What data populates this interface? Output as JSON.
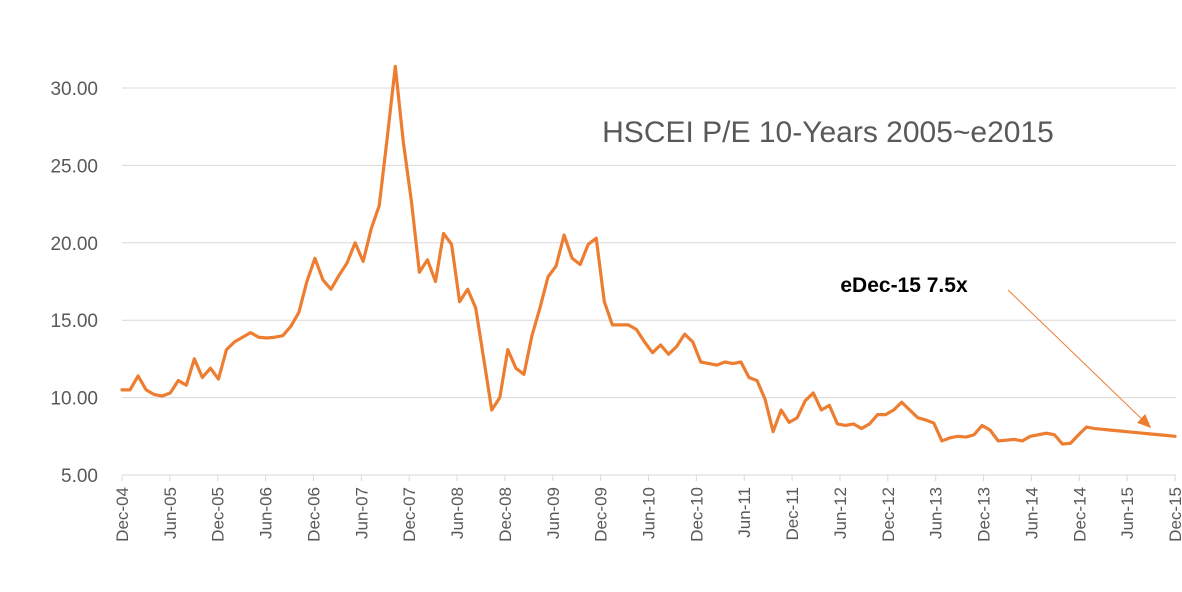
{
  "chart_data": {
    "type": "line",
    "title": "HSCEI P/E 10-Years 2005~e2015",
    "xlabel": "",
    "ylabel": "",
    "ylim": [
      5,
      32
    ],
    "y_ticks": [
      "5.00",
      "10.00",
      "15.00",
      "20.00",
      "25.00",
      "30.00"
    ],
    "x_ticks": [
      "Dec-04",
      "Jun-05",
      "Dec-05",
      "Jun-06",
      "Dec-06",
      "Jun-07",
      "Dec-07",
      "Jun-08",
      "Dec-08",
      "Jun-09",
      "Dec-09",
      "Jun-10",
      "Dec-10",
      "Jun-11",
      "Dec-11",
      "Jun-12",
      "Dec-12",
      "Jun-13",
      "Dec-13",
      "Jun-14",
      "Dec-14",
      "Jun-15",
      "Dec-15"
    ],
    "grid": "horizontal",
    "series_color": "#ED7D31",
    "series": [
      {
        "values": [
          10.5,
          10.5,
          11.4,
          10.5,
          10.2,
          10.1,
          10.3,
          11.1,
          10.8,
          12.5,
          11.3,
          11.9,
          11.2,
          13.1,
          13.6,
          13.9,
          14.2,
          13.9,
          13.85,
          13.9,
          14.0,
          14.6,
          15.5,
          17.5,
          19.0,
          17.6,
          17.0,
          17.9,
          18.7,
          20.0,
          18.8,
          20.9,
          22.4,
          26.8,
          31.4,
          26.5,
          22.7,
          18.1,
          18.9,
          17.5,
          20.6,
          19.9,
          16.2,
          17.0,
          15.8,
          12.5,
          9.2,
          10.0,
          13.1,
          11.9,
          11.5,
          14.0,
          15.8,
          17.8,
          18.5,
          20.5,
          19.0,
          18.6,
          19.9,
          20.3,
          16.2,
          14.7,
          14.7,
          14.7,
          14.4,
          13.6,
          12.9,
          13.4,
          12.8,
          13.3,
          14.1,
          13.6,
          12.3,
          12.2,
          12.1,
          12.3,
          12.2,
          12.3,
          11.3,
          11.1,
          9.9,
          7.8,
          9.2,
          8.4,
          8.7,
          9.8,
          10.3,
          9.2,
          9.5,
          8.3,
          8.2,
          8.3,
          8.0,
          8.3,
          8.9,
          8.9,
          9.2,
          9.7,
          9.2,
          8.7,
          8.55,
          8.35,
          7.2,
          7.4,
          7.5,
          7.45,
          7.6,
          8.2,
          7.9,
          7.2,
          7.25,
          7.3,
          7.2,
          7.5,
          7.6,
          7.7,
          7.6,
          7.0,
          7.05,
          7.6,
          8.1,
          8.0,
          7.95,
          7.9,
          7.85,
          7.8,
          7.75,
          7.7,
          7.65,
          7.6,
          7.55,
          7.5
        ]
      }
    ],
    "annotation": {
      "text": "eDec-15 7.5x"
    }
  }
}
